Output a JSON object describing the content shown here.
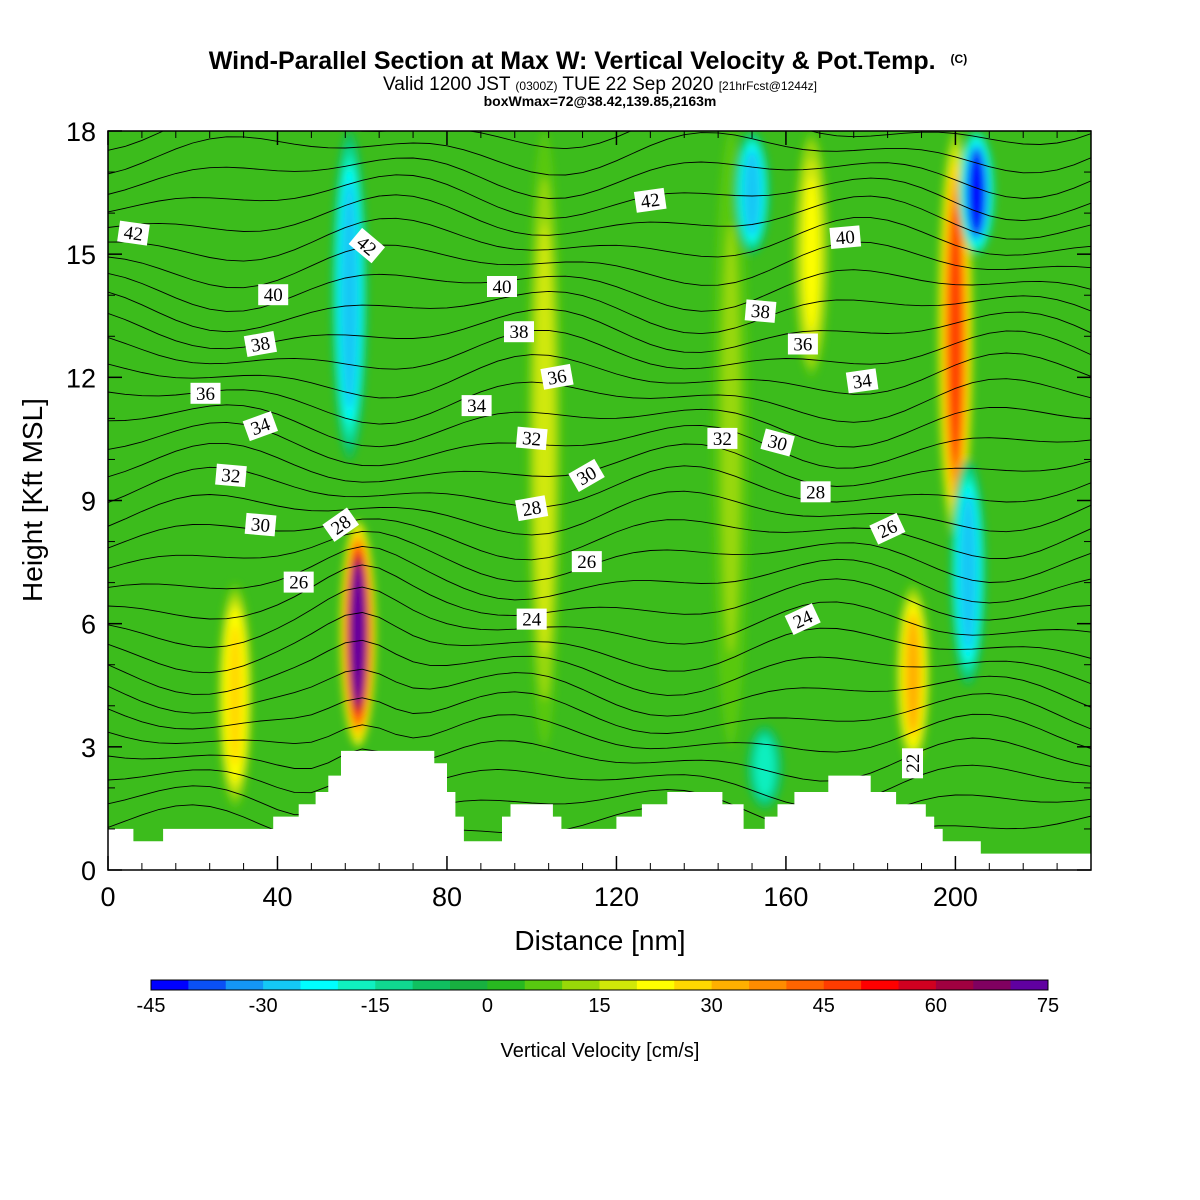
{
  "header": {
    "title": "Wind-Parallel Section at Max W: Vertical Velocity & Pot.Temp.",
    "title_mark": "(C)",
    "valid_a": "Valid 1200 JST",
    "valid_z": "(0300Z)",
    "valid_b": "TUE 22 Sep 2020",
    "forecast": "[21hrFcst@1244z]",
    "boxinfo": "boxWmax=72@38.42,139.85,2163m"
  },
  "chart_data": {
    "type": "heatmap",
    "xlabel": "Distance [nm]",
    "ylabel": "Height [Kft MSL]",
    "xlim": [
      0,
      232
    ],
    "ylim": [
      0,
      18
    ],
    "x_ticks": [
      "0",
      "40",
      "80",
      "120",
      "160",
      "200"
    ],
    "y_ticks": [
      "0",
      "3",
      "6",
      "9",
      "12",
      "15",
      "18"
    ],
    "colorbar": {
      "label": "Vertical Velocity [cm/s]",
      "tick_labels": [
        "-45",
        "-30",
        "-15",
        "0",
        "15",
        "30",
        "45",
        "60",
        "75"
      ],
      "levels": [
        -45,
        -40,
        -35,
        -30,
        -25,
        -20,
        -15,
        -10,
        -5,
        0,
        5,
        10,
        15,
        20,
        25,
        30,
        35,
        40,
        45,
        50,
        55,
        60,
        65,
        70,
        75
      ],
      "colors": [
        "#0000ff",
        "#0a50f5",
        "#1496f5",
        "#14c8f5",
        "#00ffff",
        "#10f0c0",
        "#10d890",
        "#10c060",
        "#18b040",
        "#28b820",
        "#58c810",
        "#98d808",
        "#d0e808",
        "#ffff00",
        "#ffd800",
        "#ffb000",
        "#ff8c00",
        "#ff6400",
        "#ff3c00",
        "#ff0000",
        "#d00020",
        "#a00040",
        "#800060",
        "#6000a0"
      ]
    },
    "updrafts": [
      {
        "x": 30,
        "z_bottom": 1.5,
        "z_top": 7.0,
        "w_max": 28
      },
      {
        "x": 59,
        "z_bottom": 3.0,
        "z_top": 8.5,
        "w_max": 72
      },
      {
        "x": 103,
        "z_bottom": 3.0,
        "z_top": 18,
        "w_max": 18
      },
      {
        "x": 147,
        "z_bottom": 3.0,
        "z_top": 18,
        "w_max": 12
      },
      {
        "x": 166,
        "z_bottom": 12,
        "z_top": 18,
        "w_max": 20
      },
      {
        "x": 190,
        "z_bottom": 2.5,
        "z_top": 7.0,
        "w_max": 30
      },
      {
        "x": 200,
        "z_bottom": 8.0,
        "z_top": 18,
        "w_max": 45
      }
    ],
    "downdrafts": [
      {
        "x": 57,
        "z_bottom": 10,
        "z_top": 18,
        "w_min": -30
      },
      {
        "x": 203,
        "z_bottom": 4.5,
        "z_top": 10,
        "w_min": -30
      },
      {
        "x": 205,
        "z_bottom": 15,
        "z_top": 18,
        "w_min": -45
      },
      {
        "x": 152,
        "z_bottom": 15,
        "z_top": 18,
        "w_min": -30
      },
      {
        "x": 155,
        "z_bottom": 1.5,
        "z_top": 3.5,
        "w_min": -20
      }
    ],
    "terrain_kft": [
      [
        0,
        1.0
      ],
      [
        6,
        1.0
      ],
      [
        6,
        0.7
      ],
      [
        13,
        0.7
      ],
      [
        13,
        1.0
      ],
      [
        39,
        1.0
      ],
      [
        39,
        1.3
      ],
      [
        45,
        1.3
      ],
      [
        45,
        1.6
      ],
      [
        49,
        1.6
      ],
      [
        49,
        1.9
      ],
      [
        52,
        1.9
      ],
      [
        52,
        2.3
      ],
      [
        55,
        2.3
      ],
      [
        55,
        2.9
      ],
      [
        77,
        2.9
      ],
      [
        77,
        2.6
      ],
      [
        80,
        2.6
      ],
      [
        80,
        1.9
      ],
      [
        82,
        1.9
      ],
      [
        82,
        1.3
      ],
      [
        84,
        1.3
      ],
      [
        84,
        0.7
      ],
      [
        93,
        0.7
      ],
      [
        93,
        1.3
      ],
      [
        95,
        1.3
      ],
      [
        95,
        1.6
      ],
      [
        105,
        1.6
      ],
      [
        105,
        1.3
      ],
      [
        107,
        1.3
      ],
      [
        107,
        1.0
      ],
      [
        120,
        1.0
      ],
      [
        120,
        1.3
      ],
      [
        126,
        1.3
      ],
      [
        126,
        1.6
      ],
      [
        132,
        1.6
      ],
      [
        132,
        1.9
      ],
      [
        145,
        1.9
      ],
      [
        145,
        1.6
      ],
      [
        150,
        1.6
      ],
      [
        150,
        1.0
      ],
      [
        155,
        1.0
      ],
      [
        155,
        1.3
      ],
      [
        158,
        1.3
      ],
      [
        158,
        1.6
      ],
      [
        162,
        1.6
      ],
      [
        162,
        1.9
      ],
      [
        170,
        1.9
      ],
      [
        170,
        2.3
      ],
      [
        180,
        2.3
      ],
      [
        180,
        1.9
      ],
      [
        186,
        1.9
      ],
      [
        186,
        1.6
      ],
      [
        193,
        1.6
      ],
      [
        193,
        1.3
      ],
      [
        195,
        1.3
      ],
      [
        195,
        1.0
      ],
      [
        197,
        1.0
      ],
      [
        197,
        0.7
      ],
      [
        206,
        0.7
      ],
      [
        206,
        0.4
      ],
      [
        232,
        0.4
      ]
    ],
    "theta_contour_labels": [
      {
        "text": "42",
        "x": 6,
        "z": 15.5,
        "angle": 8
      },
      {
        "text": "42",
        "x": 61,
        "z": 15.2,
        "angle": 40
      },
      {
        "text": "42",
        "x": 128,
        "z": 16.3,
        "angle": -8
      },
      {
        "text": "40",
        "x": 39,
        "z": 14.0,
        "angle": 0
      },
      {
        "text": "40",
        "x": 93,
        "z": 14.2,
        "angle": 0
      },
      {
        "text": "40",
        "x": 174,
        "z": 15.4,
        "angle": -5
      },
      {
        "text": "38",
        "x": 36,
        "z": 12.8,
        "angle": -10
      },
      {
        "text": "38",
        "x": 97,
        "z": 13.1,
        "angle": 0
      },
      {
        "text": "38",
        "x": 154,
        "z": 13.6,
        "angle": 5
      },
      {
        "text": "36",
        "x": 23,
        "z": 11.6,
        "angle": 0
      },
      {
        "text": "36",
        "x": 106,
        "z": 12.0,
        "angle": -10
      },
      {
        "text": "36",
        "x": 164,
        "z": 12.8,
        "angle": 0
      },
      {
        "text": "34",
        "x": 36,
        "z": 10.8,
        "angle": -20
      },
      {
        "text": "34",
        "x": 87,
        "z": 11.3,
        "angle": 0
      },
      {
        "text": "34",
        "x": 178,
        "z": 11.9,
        "angle": -8
      },
      {
        "text": "32",
        "x": 29,
        "z": 9.6,
        "angle": 5
      },
      {
        "text": "32",
        "x": 100,
        "z": 10.5,
        "angle": 5
      },
      {
        "text": "32",
        "x": 145,
        "z": 10.5,
        "angle": 0
      },
      {
        "text": "30",
        "x": 36,
        "z": 8.4,
        "angle": 5
      },
      {
        "text": "30",
        "x": 113,
        "z": 9.6,
        "angle": -30
      },
      {
        "text": "30",
        "x": 158,
        "z": 10.4,
        "angle": 15
      },
      {
        "text": "28",
        "x": 55,
        "z": 8.4,
        "angle": -35
      },
      {
        "text": "28",
        "x": 100,
        "z": 8.8,
        "angle": -10
      },
      {
        "text": "28",
        "x": 167,
        "z": 9.2,
        "angle": 0
      },
      {
        "text": "26",
        "x": 45,
        "z": 7.0,
        "angle": 0
      },
      {
        "text": "26",
        "x": 113,
        "z": 7.5,
        "angle": 0
      },
      {
        "text": "26",
        "x": 184,
        "z": 8.3,
        "angle": -25
      },
      {
        "text": "24",
        "x": 100,
        "z": 6.1,
        "angle": 0
      },
      {
        "text": "24",
        "x": 164,
        "z": 6.1,
        "angle": -25
      },
      {
        "text": "22",
        "x": 190,
        "z": 2.6,
        "angle": -90
      }
    ]
  }
}
